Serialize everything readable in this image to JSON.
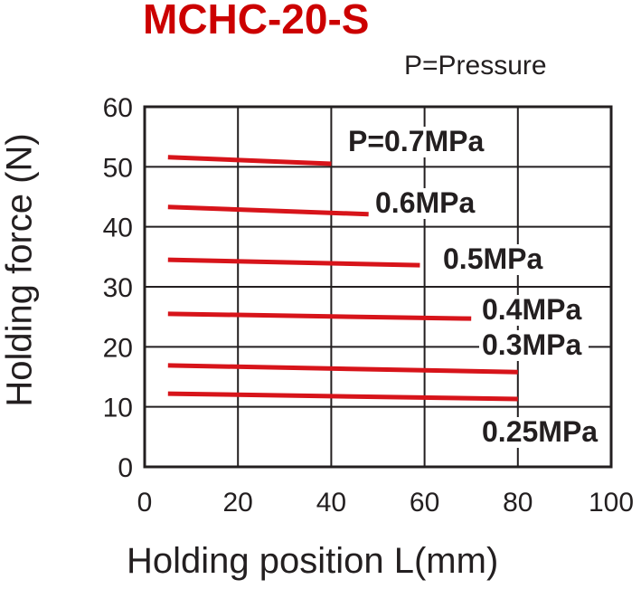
{
  "chart_data": {
    "type": "line",
    "title": "MCHC-20-S",
    "subtitle": "P=Pressure",
    "xlabel": "Holding position L(mm)",
    "ylabel": "Holding force (N)",
    "xlim": [
      0,
      100
    ],
    "ylim": [
      0,
      60
    ],
    "xticks": [
      "0",
      "20",
      "40",
      "60",
      "80",
      "100"
    ],
    "yticks": [
      "0",
      "10",
      "20",
      "30",
      "40",
      "50",
      "60"
    ],
    "grid": true,
    "series": [
      {
        "name": "P=0.7MPa",
        "x": [
          5,
          40
        ],
        "y": [
          51.6,
          50.5
        ]
      },
      {
        "name": "0.6MPa",
        "x": [
          5,
          48
        ],
        "y": [
          43.3,
          42.1
        ]
      },
      {
        "name": "0.5MPa",
        "x": [
          5,
          59
        ],
        "y": [
          34.5,
          33.6
        ]
      },
      {
        "name": "0.4MPa",
        "x": [
          5,
          70
        ],
        "y": [
          25.5,
          24.7
        ]
      },
      {
        "name": "0.3MPa",
        "x": [
          5,
          80
        ],
        "y": [
          16.9,
          15.8
        ]
      },
      {
        "name": "0.25MPa",
        "x": [
          5,
          80
        ],
        "y": [
          12.2,
          11.3
        ]
      }
    ],
    "line_color": "#d7141a",
    "title_color": "#cc0000"
  }
}
